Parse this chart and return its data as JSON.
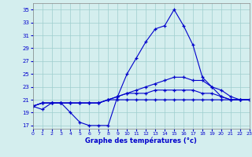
{
  "hours": [
    0,
    1,
    2,
    3,
    4,
    5,
    6,
    7,
    8,
    9,
    10,
    11,
    12,
    13,
    14,
    15,
    16,
    17,
    18,
    19,
    20,
    21,
    22,
    23
  ],
  "line1_temp": [
    20.0,
    19.5,
    20.5,
    20.5,
    19.0,
    17.5,
    17.0,
    17.0,
    17.0,
    21.5,
    25.0,
    27.5,
    30.0,
    32.0,
    32.5,
    35.0,
    32.5,
    29.5,
    24.5,
    23.0,
    21.5,
    21.0,
    21.0,
    21.0
  ],
  "line2_avg_high": [
    20.0,
    20.5,
    20.5,
    20.5,
    20.5,
    20.5,
    20.5,
    20.5,
    21.0,
    21.5,
    22.0,
    22.5,
    23.0,
    23.5,
    24.0,
    24.5,
    24.5,
    24.0,
    24.0,
    23.0,
    22.5,
    21.5,
    21.0,
    21.0
  ],
  "line3_avg_mid": [
    20.0,
    20.5,
    20.5,
    20.5,
    20.5,
    20.5,
    20.5,
    20.5,
    21.0,
    21.5,
    22.0,
    22.0,
    22.0,
    22.5,
    22.5,
    22.5,
    22.5,
    22.5,
    22.0,
    22.0,
    21.5,
    21.0,
    21.0,
    21.0
  ],
  "line4_min": [
    20.0,
    20.5,
    20.5,
    20.5,
    20.5,
    20.5,
    20.5,
    20.5,
    21.0,
    21.0,
    21.0,
    21.0,
    21.0,
    21.0,
    21.0,
    21.0,
    21.0,
    21.0,
    21.0,
    21.0,
    21.0,
    21.0,
    21.0,
    21.0
  ],
  "color": "#0000cc",
  "bg_color": "#d4eeee",
  "grid_color": "#9ecece",
  "xlabel": "Graphe des températures (°c)",
  "xlim": [
    0,
    23
  ],
  "ylim": [
    16.5,
    36
  ],
  "yticks": [
    17,
    19,
    21,
    23,
    25,
    27,
    29,
    31,
    33,
    35
  ],
  "xticks": [
    0,
    1,
    2,
    3,
    4,
    5,
    6,
    7,
    8,
    9,
    10,
    11,
    12,
    13,
    14,
    15,
    16,
    17,
    18,
    19,
    20,
    21,
    22,
    23
  ]
}
